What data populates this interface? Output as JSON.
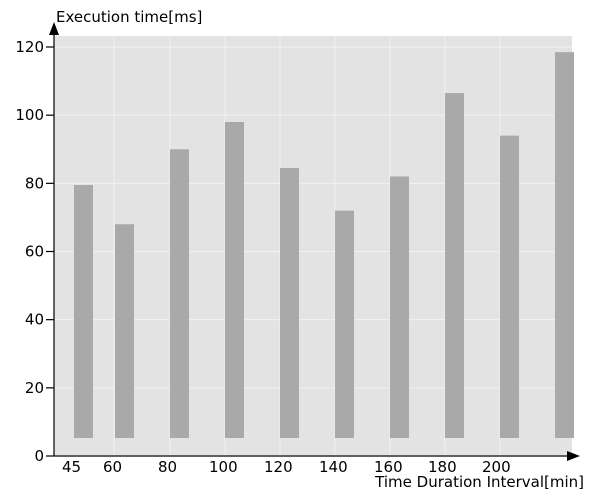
{
  "chart_data": {
    "type": "bar",
    "title": "",
    "ylabel": "Execution time[ms]",
    "xlabel": "Time Duration Interval[min]",
    "categories": [
      "45",
      "60",
      "80",
      "100",
      "120",
      "140",
      "160",
      "180",
      "200",
      ""
    ],
    "values": [
      79.5,
      68,
      90,
      98,
      84.5,
      72,
      82,
      106.5,
      94,
      118.5
    ],
    "ylim": [
      0,
      120
    ],
    "yticks": [
      0,
      20,
      40,
      60,
      80,
      100,
      120
    ],
    "grid": true,
    "colors": {
      "bar": "#a9a9a9",
      "plot_background": "#e3e3e3",
      "grid": "#f2f2f2",
      "axis": "#000000"
    }
  }
}
